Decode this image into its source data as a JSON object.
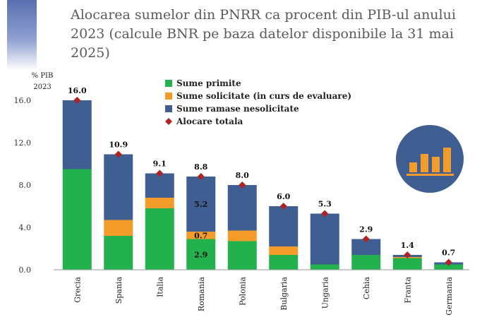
{
  "title_line1": "Alocarea sumelor din PNRR ca procent din PIB-ul anului",
  "title_line2": "2023 (calcule BNR pe baza datelor disponibile la 31 mai 2025)",
  "colors": {
    "primite": "#22b14c",
    "solicitate": "#f39c2a",
    "ramase": "#3f5f92",
    "total_marker": "#b22222",
    "icon_circle": "#3f5f92",
    "icon_bars": "#f39c2a"
  },
  "icon": "bar-chart-icon",
  "chart_data": {
    "type": "bar",
    "stacked": true,
    "ylabel": "% PIB 2023",
    "ylim": [
      0,
      16
    ],
    "yticks": [
      "0.0",
      "4.0",
      "8.0",
      "12.0",
      "16.0"
    ],
    "yticks_values": [
      0,
      4,
      8,
      12,
      16
    ],
    "categories": [
      "Grecia",
      "Spania",
      "Italia",
      "Romania",
      "Polonia",
      "Bulgaria",
      "Ungaria",
      "Cehia",
      "Franta",
      "Germania"
    ],
    "series": [
      {
        "name": "Sume primite",
        "key": "primite",
        "values": [
          9.5,
          3.2,
          5.8,
          2.9,
          2.7,
          1.4,
          0.5,
          1.4,
          1.1,
          0.5
        ]
      },
      {
        "name": "Sume solicitate (in curs de evaluare)",
        "key": "solicitate",
        "values": [
          0.0,
          1.5,
          1.0,
          0.7,
          1.0,
          0.8,
          0.0,
          0.0,
          0.1,
          0.0
        ]
      },
      {
        "name": "Sume ramase nesolicitate",
        "key": "ramase",
        "values": [
          6.5,
          6.2,
          2.3,
          5.2,
          4.3,
          3.8,
          4.8,
          1.5,
          0.2,
          0.2
        ]
      }
    ],
    "totals_name": "Alocare totala",
    "totals": [
      16.0,
      10.9,
      9.1,
      8.8,
      8.0,
      6.0,
      5.3,
      2.9,
      1.4,
      0.7
    ],
    "totals_labels": [
      "16.0",
      "10.9",
      "9.1",
      "8.8",
      "8.0",
      "6.0",
      "5.3",
      "2.9",
      "1.4",
      "0.7"
    ],
    "segment_labels": [
      {
        "category": "Romania",
        "series": "ramase",
        "text": "5.2"
      },
      {
        "category": "Romania",
        "series": "solicitate",
        "text": "0.7"
      },
      {
        "category": "Romania",
        "series": "primite",
        "text": "2.9"
      }
    ],
    "legend_position": "top-center",
    "grid": false
  }
}
